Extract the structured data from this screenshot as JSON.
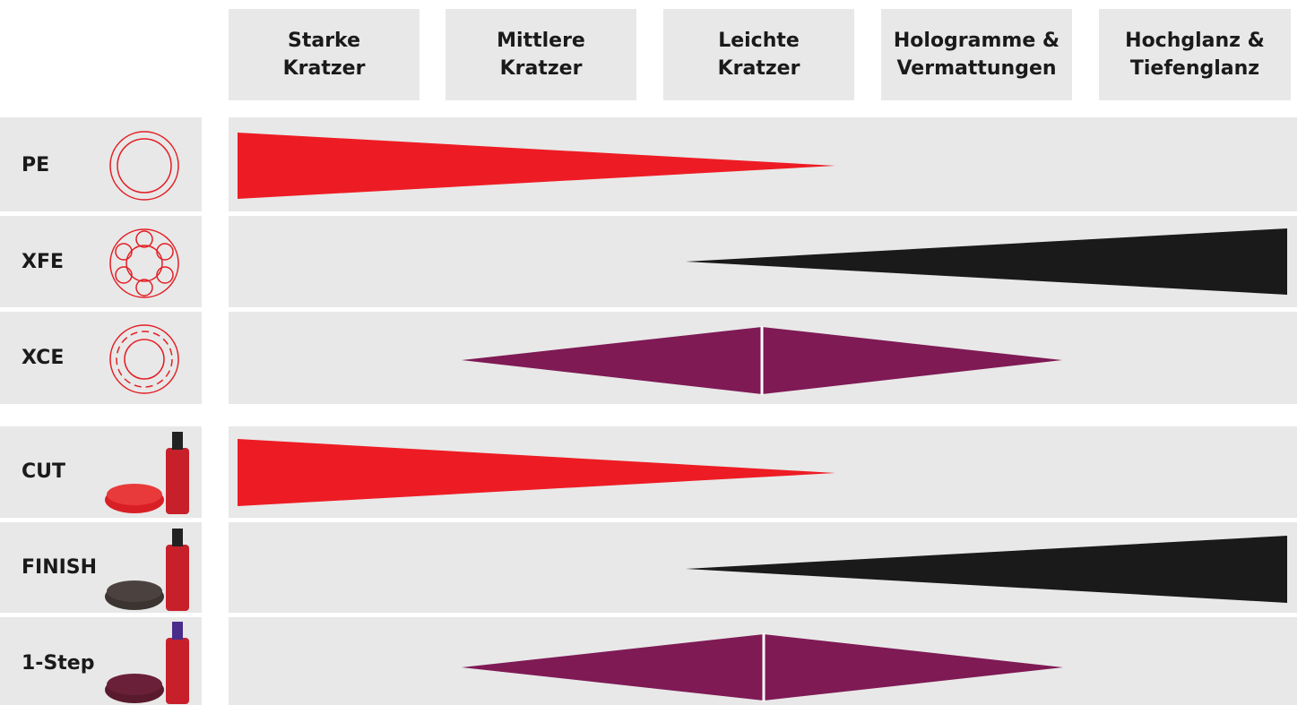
{
  "header": {
    "columns": [
      {
        "lines": [
          "Starke",
          "Kratzer"
        ]
      },
      {
        "lines": [
          "Mittlere",
          "Kratzer"
        ]
      },
      {
        "lines": [
          "Leichte",
          "Kratzer"
        ]
      },
      {
        "lines": [
          "Hologramme &",
          "Vermattungen"
        ]
      },
      {
        "lines": [
          "Hochglanz &",
          "Tiefenglanz"
        ]
      }
    ]
  },
  "rows": [
    {
      "label": "PE"
    },
    {
      "label": "XFE"
    },
    {
      "label": "XCE"
    },
    {
      "label": "CUT"
    },
    {
      "label": "FINISH"
    },
    {
      "label": "1-Step"
    }
  ]
}
